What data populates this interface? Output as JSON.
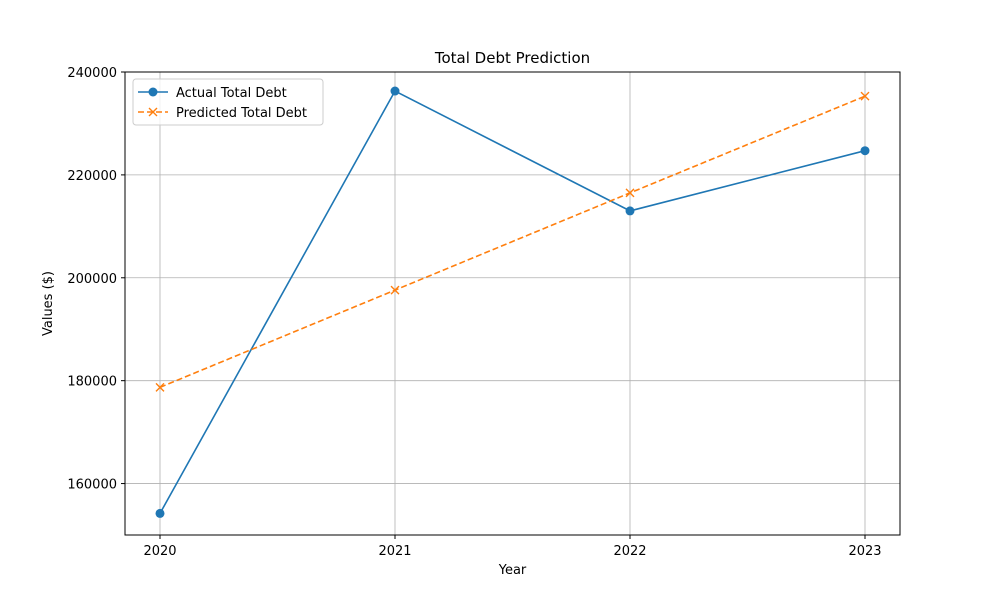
{
  "chart_data": {
    "type": "line",
    "title": "Total Debt Prediction",
    "xlabel": "Year",
    "ylabel": "Values ($)",
    "x": [
      2020,
      2021,
      2022,
      2023
    ],
    "x_tick_labels": [
      "2020",
      "2021",
      "2022",
      "2023"
    ],
    "ylim": [
      150000,
      240000
    ],
    "y_ticks": [
      160000,
      180000,
      200000,
      220000,
      240000
    ],
    "y_tick_labels": [
      "160000",
      "180000",
      "200000",
      "220000",
      "240000"
    ],
    "grid": true,
    "legend": "upper-left",
    "series": [
      {
        "name": "Actual Total Debt",
        "values": [
          154200,
          236300,
          213000,
          224700
        ],
        "color": "#1f77b4",
        "line_style": "solid",
        "marker": "circle"
      },
      {
        "name": "Predicted Total Debt",
        "values": [
          178700,
          197600,
          216500,
          235300
        ],
        "color": "#ff7f0e",
        "line_style": "dashed",
        "marker": "x"
      }
    ]
  }
}
